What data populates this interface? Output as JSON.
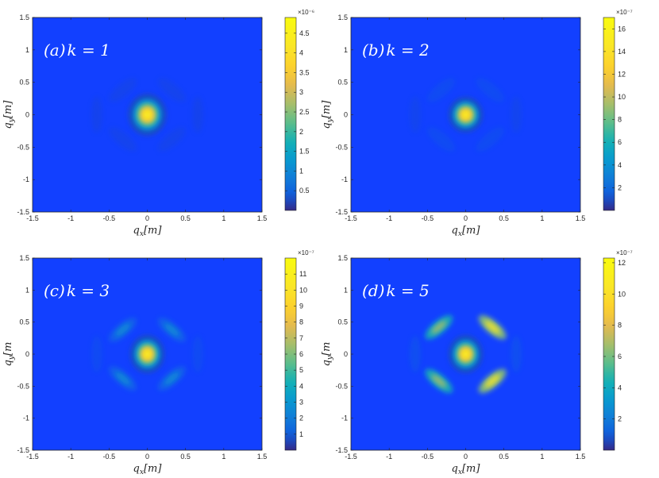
{
  "chart_data": [
    {
      "type": "heatmap",
      "title": "(a)k = 1",
      "title_main": "(a)",
      "title_var": "k = 1",
      "xlabel": "q_x[m]",
      "ylabel": "q_y[m]",
      "xlabel_parts": [
        "q",
        "x",
        "[m]"
      ],
      "ylabel_parts": [
        "q",
        "y",
        "[m]"
      ],
      "xlim": [
        -1.5,
        1.5
      ],
      "ylim": [
        -1.5,
        1.5
      ],
      "xticks": [
        "-1.5",
        "-1",
        "-0.5",
        "0",
        "0.5",
        "1",
        "1.5"
      ],
      "yticks": [
        "1.5",
        "1",
        "0.5",
        "0",
        "-0.5",
        "-1",
        "-1.5"
      ],
      "colorbar": {
        "multiplier": "×10⁻⁶",
        "range": [
          0,
          4.9
        ],
        "ticks": [
          "4.5",
          "4",
          "3.5",
          "3",
          "2.5",
          "2",
          "1.5",
          "1",
          "0.5"
        ],
        "tick_values": [
          4.5,
          4.0,
          3.5,
          3.0,
          2.5,
          2.0,
          1.5,
          1.0,
          0.5
        ]
      },
      "features": {
        "central_peak": {
          "x": 0,
          "y": 0,
          "value": 4.9,
          "sx": 0.1,
          "sy": 0.13
        },
        "ring_lobes": [
          {
            "x": 0.32,
            "y": 0.38,
            "value": 0.15
          },
          {
            "x": -0.32,
            "y": 0.38,
            "value": 0.15
          },
          {
            "x": 0.32,
            "y": -0.38,
            "value": 0.15
          },
          {
            "x": -0.32,
            "y": -0.38,
            "value": 0.15
          },
          {
            "x": 0.66,
            "y": 0,
            "value": 0.08
          },
          {
            "x": -0.66,
            "y": 0,
            "value": 0.08
          }
        ]
      }
    },
    {
      "type": "heatmap",
      "title": "(b) k = 2",
      "title_main": "(b)",
      "title_var": "k = 2",
      "xlabel": "q_x[m]",
      "ylabel": "q_y[m]",
      "xlabel_parts": [
        "q",
        "x",
        "[m]"
      ],
      "ylabel_parts": [
        "q",
        "y",
        "[m]"
      ],
      "xlim": [
        -1.5,
        1.5
      ],
      "ylim": [
        -1.5,
        1.5
      ],
      "xticks": [
        "-1.5",
        "-1",
        "-0.5",
        "0",
        "0.5",
        "1",
        "1.5"
      ],
      "yticks": [
        "1.5",
        "1",
        "0.5",
        "0",
        "-0.5",
        "-1",
        "-1.5"
      ],
      "colorbar": {
        "multiplier": "×10⁻⁷",
        "range": [
          0,
          17
        ],
        "ticks": [
          "16",
          "14",
          "12",
          "10",
          "8",
          "6",
          "4",
          "2"
        ],
        "tick_values": [
          16,
          14,
          12,
          10,
          8,
          6,
          4,
          2
        ]
      },
      "features": {
        "central_peak": {
          "x": 0,
          "y": 0,
          "value": 17,
          "sx": 0.09,
          "sy": 0.11
        },
        "ring_lobes": [
          {
            "x": 0.32,
            "y": 0.38,
            "value": 1.5
          },
          {
            "x": -0.32,
            "y": 0.38,
            "value": 1.5
          },
          {
            "x": 0.32,
            "y": -0.38,
            "value": 1.5
          },
          {
            "x": -0.32,
            "y": -0.38,
            "value": 1.5
          },
          {
            "x": 0.66,
            "y": 0,
            "value": 0.7
          },
          {
            "x": -0.66,
            "y": 0,
            "value": 0.7
          }
        ]
      }
    },
    {
      "type": "heatmap",
      "title": "(c) k = 3",
      "title_main": "(c)",
      "title_var": "k = 3",
      "xlabel": "q_x[m]",
      "ylabel": "q_y[m",
      "xlabel_parts": [
        "q",
        "x",
        "[m]"
      ],
      "ylabel_parts": [
        "q",
        "y",
        "[m"
      ],
      "xlim": [
        -1.5,
        1.5
      ],
      "ylim": [
        -1.5,
        1.5
      ],
      "xticks": [
        "-1.5",
        "-1",
        "-0.5",
        "0",
        "0.5",
        "1",
        "1.5"
      ],
      "yticks": [
        "1.5",
        "1",
        "0.5",
        "0",
        "-0.5",
        "-1",
        "-1.5"
      ],
      "colorbar": {
        "multiplier": "×10⁻⁷",
        "range": [
          0,
          12
        ],
        "ticks": [
          "11",
          "10",
          "9",
          "8",
          "7",
          "6",
          "5",
          "4",
          "3",
          "2",
          "1"
        ],
        "tick_values": [
          11,
          10,
          9,
          8,
          7,
          6,
          5,
          4,
          3,
          2,
          1
        ]
      },
      "features": {
        "central_peak": {
          "x": 0,
          "y": 0,
          "value": 12,
          "sx": 0.09,
          "sy": 0.12
        },
        "ring_lobes": [
          {
            "x": 0.32,
            "y": 0.38,
            "value": 2.8
          },
          {
            "x": -0.32,
            "y": 0.38,
            "value": 2.8
          },
          {
            "x": 0.32,
            "y": -0.38,
            "value": 2.8
          },
          {
            "x": -0.32,
            "y": -0.38,
            "value": 2.8
          },
          {
            "x": 0.66,
            "y": 0,
            "value": 1.0
          },
          {
            "x": -0.66,
            "y": 0,
            "value": 1.0
          }
        ]
      }
    },
    {
      "type": "heatmap",
      "title": "(d) k = 5",
      "title_main": "(d)",
      "title_var": "k = 5",
      "xlabel": "q_x[m]",
      "ylabel": "q_y[m",
      "xlabel_parts": [
        "q",
        "x",
        "[m]"
      ],
      "ylabel_parts": [
        "q",
        "y",
        "[m"
      ],
      "xlim": [
        -1.5,
        1.5
      ],
      "ylim": [
        -1.5,
        1.5
      ],
      "xticks": [
        "-1.5",
        "-1",
        "-0.5",
        "0",
        "0.5",
        "1",
        "1.5"
      ],
      "yticks": [
        "1.5",
        "1",
        "0.5",
        "0",
        "-0.5",
        "-1",
        "-1.5"
      ],
      "colorbar": {
        "multiplier": "×10⁻⁷",
        "range": [
          0,
          12.3
        ],
        "ticks": [
          "12",
          "10",
          "8",
          "6",
          "4",
          "2"
        ],
        "tick_values": [
          12,
          10,
          8,
          6,
          4,
          2
        ]
      },
      "features": {
        "central_peak": {
          "x": 0,
          "y": 0,
          "value": 12,
          "sx": 0.09,
          "sy": 0.12
        },
        "ring_lobes": [
          {
            "x": 0.35,
            "y": 0.42,
            "value": 10.5
          },
          {
            "x": -0.35,
            "y": 0.42,
            "value": 7.0
          },
          {
            "x": 0.35,
            "y": -0.42,
            "value": 10.5
          },
          {
            "x": -0.35,
            "y": -0.42,
            "value": 7.0
          },
          {
            "x": 0.66,
            "y": 0,
            "value": 1.5
          },
          {
            "x": -0.66,
            "y": 0,
            "value": 1.5
          }
        ]
      }
    }
  ]
}
